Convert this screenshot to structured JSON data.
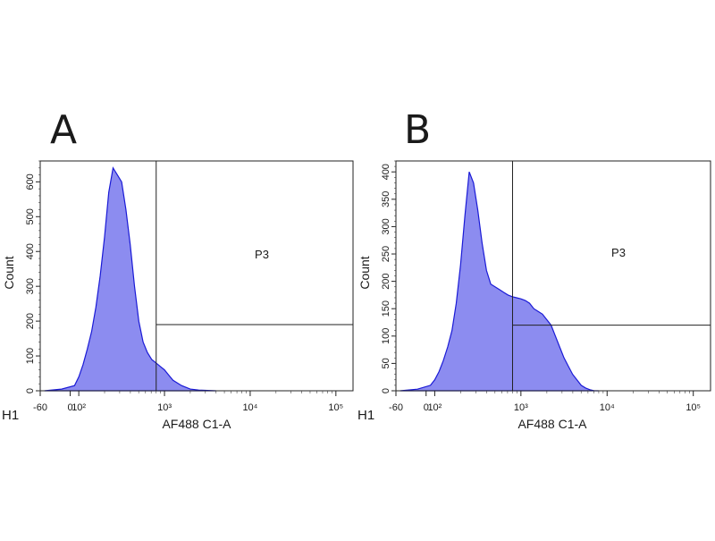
{
  "figure": {
    "panels": [
      "A",
      "B"
    ]
  },
  "chart_data": [
    {
      "type": "area",
      "panel": "A",
      "xlabel": "AF488 C1-A",
      "ylabel": "Count",
      "corner_label": "H1",
      "gate_label": "P3",
      "gate_x": 800,
      "gate_marker_y": 190,
      "xlim_log10": [
        1.55,
        5.2
      ],
      "ylim": [
        0,
        660
      ],
      "x_ticks": [
        {
          "label": "-60",
          "pos_log10": 1.55
        },
        {
          "label": "0",
          "pos_log10": 1.9
        },
        {
          "label": "10²",
          "pos_log10": 2.0
        },
        {
          "label": "10³",
          "pos_log10": 3.0
        },
        {
          "label": "10⁴",
          "pos_log10": 4.0
        },
        {
          "label": "10⁵",
          "pos_log10": 5.0
        }
      ],
      "y_ticks": [
        0,
        100,
        200,
        300,
        400,
        500,
        600
      ],
      "color": "#1a1ad6",
      "fill": "#8c8cf0",
      "x_log10": [
        1.6,
        1.8,
        1.95,
        2.0,
        2.05,
        2.1,
        2.15,
        2.2,
        2.25,
        2.3,
        2.35,
        2.4,
        2.45,
        2.5,
        2.55,
        2.6,
        2.65,
        2.7,
        2.75,
        2.8,
        2.85,
        2.9,
        2.95,
        3.0,
        3.05,
        3.1,
        3.2,
        3.3,
        3.4,
        3.6
      ],
      "counts": [
        0,
        5,
        15,
        40,
        75,
        120,
        170,
        240,
        330,
        440,
        570,
        640,
        620,
        600,
        520,
        420,
        300,
        200,
        140,
        110,
        90,
        80,
        70,
        60,
        45,
        30,
        15,
        5,
        2,
        0
      ]
    },
    {
      "type": "area",
      "panel": "B",
      "xlabel": "AF488 C1-A",
      "ylabel": "Count",
      "corner_label": "H1",
      "gate_label": "P3",
      "gate_x": 800,
      "gate_marker_y": 120,
      "xlim_log10": [
        1.55,
        5.2
      ],
      "ylim": [
        0,
        420
      ],
      "x_ticks": [
        {
          "label": "-60",
          "pos_log10": 1.55
        },
        {
          "label": "0",
          "pos_log10": 1.9
        },
        {
          "label": "10²",
          "pos_log10": 2.0
        },
        {
          "label": "10³",
          "pos_log10": 3.0
        },
        {
          "label": "10⁴",
          "pos_log10": 4.0
        },
        {
          "label": "10⁵",
          "pos_log10": 5.0
        }
      ],
      "y_ticks": [
        0,
        50,
        100,
        150,
        200,
        250,
        300,
        350,
        400
      ],
      "color": "#1a1ad6",
      "fill": "#8c8cf0",
      "x_log10": [
        1.6,
        1.8,
        1.95,
        2.0,
        2.05,
        2.1,
        2.15,
        2.2,
        2.25,
        2.3,
        2.35,
        2.4,
        2.45,
        2.5,
        2.55,
        2.6,
        2.65,
        2.7,
        2.75,
        2.8,
        2.85,
        2.9,
        2.95,
        3.0,
        3.05,
        3.1,
        3.15,
        3.2,
        3.25,
        3.3,
        3.35,
        3.4,
        3.45,
        3.5,
        3.55,
        3.6,
        3.65,
        3.7,
        3.75,
        3.8,
        3.85,
        3.9
      ],
      "counts": [
        0,
        3,
        10,
        20,
        35,
        55,
        80,
        110,
        160,
        230,
        320,
        400,
        380,
        330,
        270,
        220,
        195,
        190,
        185,
        180,
        175,
        172,
        170,
        168,
        165,
        160,
        150,
        145,
        140,
        130,
        120,
        100,
        80,
        60,
        45,
        30,
        20,
        10,
        5,
        2,
        0,
        0
      ]
    }
  ]
}
